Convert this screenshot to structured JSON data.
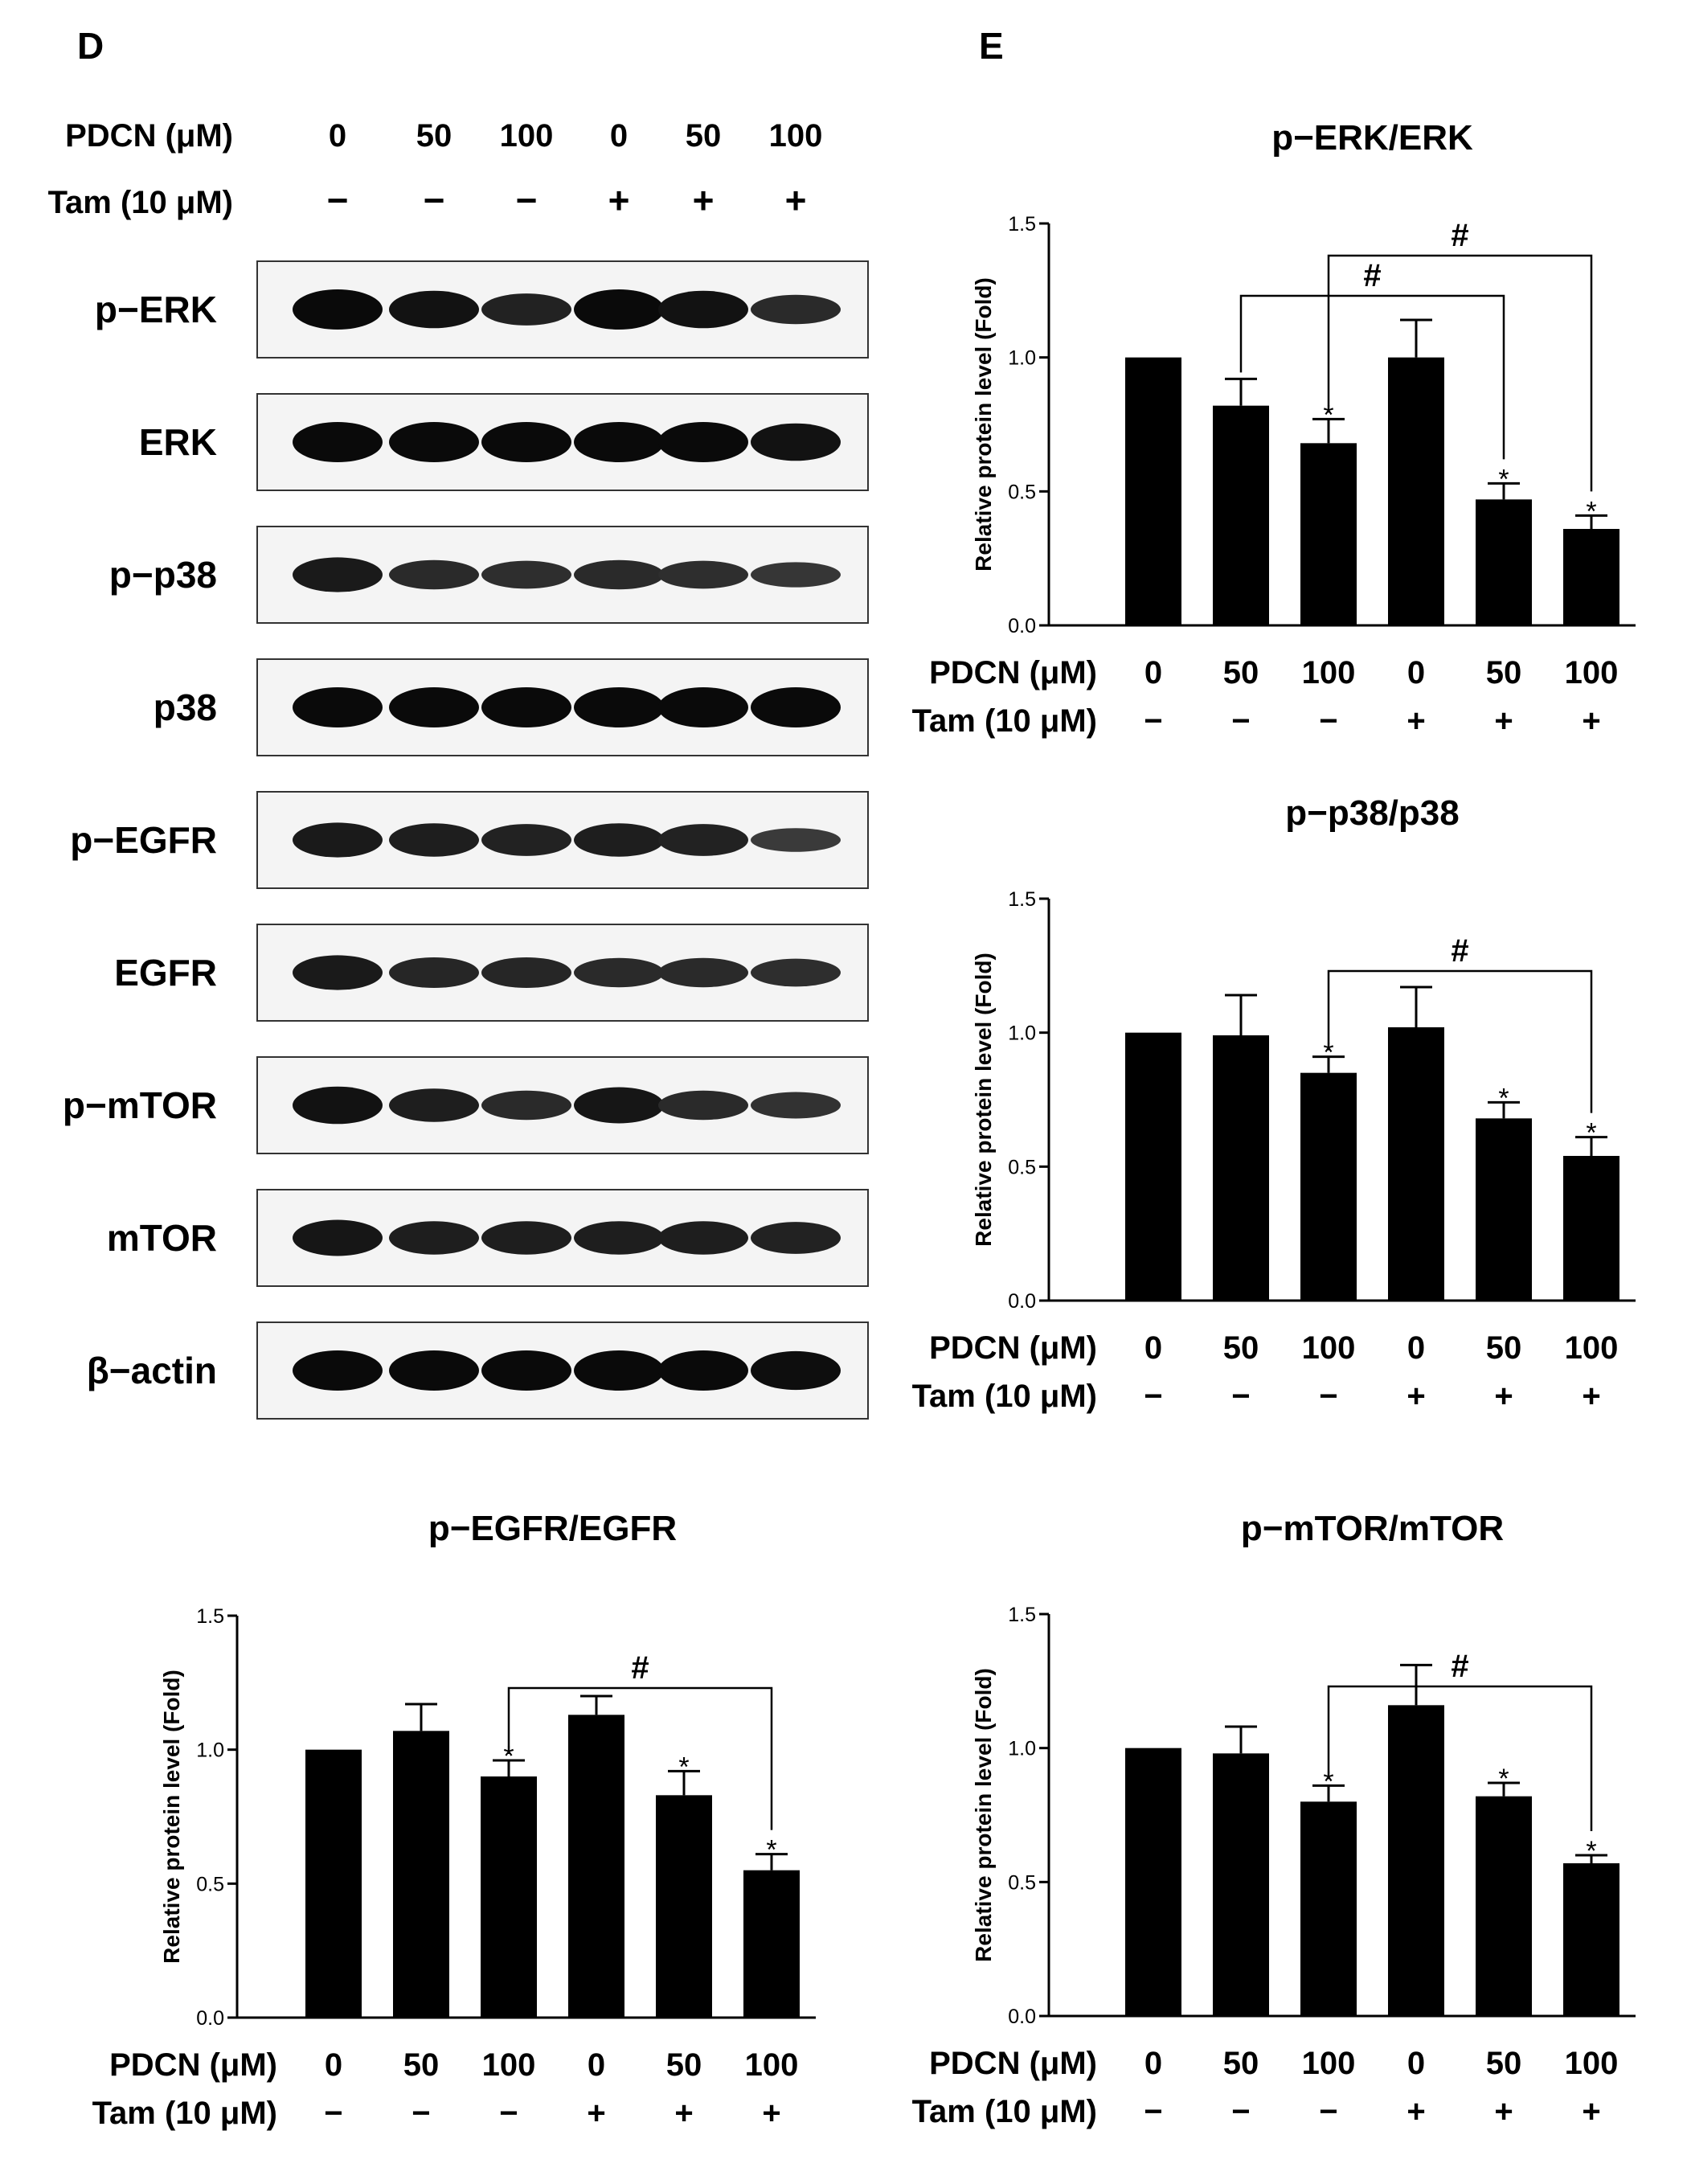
{
  "panel_letters": {
    "d": "D",
    "e": "E"
  },
  "treatment_labels": {
    "pdcn_label": "PDCN (μM)",
    "tam_label": "Tam (10 μM)",
    "pdcn_values": [
      "0",
      "50",
      "100",
      "0",
      "50",
      "100"
    ],
    "tam_values": [
      "−",
      "−",
      "−",
      "+",
      "+",
      "+"
    ]
  },
  "blot": {
    "rows": [
      {
        "label": "p−ERK",
        "intensities": [
          1.0,
          0.9,
          0.7,
          1.0,
          0.9,
          0.6
        ]
      },
      {
        "label": "ERK",
        "intensities": [
          1.0,
          1.0,
          1.0,
          1.0,
          1.0,
          0.9
        ]
      },
      {
        "label": "p−p38",
        "intensities": [
          0.8,
          0.6,
          0.55,
          0.6,
          0.55,
          0.45
        ]
      },
      {
        "label": "p38",
        "intensities": [
          1.0,
          1.0,
          1.0,
          1.0,
          1.0,
          1.0
        ]
      },
      {
        "label": "p−EGFR",
        "intensities": [
          0.8,
          0.75,
          0.7,
          0.75,
          0.7,
          0.4
        ]
      },
      {
        "label": "EGFR",
        "intensities": [
          0.8,
          0.65,
          0.65,
          0.6,
          0.6,
          0.55
        ]
      },
      {
        "label": "p−mTOR",
        "intensities": [
          0.9,
          0.75,
          0.6,
          0.85,
          0.6,
          0.5
        ]
      },
      {
        "label": "mTOR",
        "intensities": [
          0.85,
          0.75,
          0.75,
          0.75,
          0.75,
          0.7
        ]
      },
      {
        "label": "β−actin",
        "intensities": [
          1.0,
          1.0,
          1.0,
          1.0,
          1.0,
          0.95
        ]
      }
    ]
  },
  "chart_data": [
    {
      "type": "bar",
      "title": "p−ERK/ERK",
      "ylabel": "Relative protein level (Fold)",
      "ylim": [
        0,
        1.5
      ],
      "yticks": [
        "0.0",
        "0.5",
        "1.0",
        "1.5"
      ],
      "categories": [
        "0 / −",
        "50 / −",
        "100 / −",
        "0 / +",
        "50 / +",
        "100 / +"
      ],
      "values": [
        1.0,
        0.82,
        0.68,
        1.0,
        0.47,
        0.36
      ],
      "errors": [
        0.0,
        0.1,
        0.09,
        0.14,
        0.06,
        0.05
      ],
      "star_label": "*",
      "stars": [
        false,
        false,
        true,
        false,
        true,
        true
      ],
      "hash_label": "#",
      "brackets": [
        [
          1,
          4
        ],
        [
          2,
          5
        ]
      ]
    },
    {
      "type": "bar",
      "title": "p−p38/p38",
      "ylabel": "Relative protein level (Fold)",
      "ylim": [
        0,
        1.5
      ],
      "yticks": [
        "0.0",
        "0.5",
        "1.0",
        "1.5"
      ],
      "categories": [
        "0 / −",
        "50 / −",
        "100 / −",
        "0 / +",
        "50 / +",
        "100 / +"
      ],
      "values": [
        1.0,
        0.99,
        0.85,
        1.02,
        0.68,
        0.54
      ],
      "errors": [
        0.0,
        0.15,
        0.06,
        0.15,
        0.06,
        0.07
      ],
      "star_label": "*",
      "stars": [
        false,
        false,
        true,
        false,
        true,
        true
      ],
      "hash_label": "#",
      "brackets": [
        [
          2,
          5
        ]
      ]
    },
    {
      "type": "bar",
      "title": "p−EGFR/EGFR",
      "ylabel": "Relative protein level (Fold)",
      "ylim": [
        0,
        1.5
      ],
      "yticks": [
        "0.0",
        "0.5",
        "1.0",
        "1.5"
      ],
      "categories": [
        "0 / −",
        "50 / −",
        "100 / −",
        "0 / +",
        "50 / +",
        "100 / +"
      ],
      "values": [
        1.0,
        1.07,
        0.9,
        1.13,
        0.83,
        0.55
      ],
      "errors": [
        0.0,
        0.1,
        0.06,
        0.07,
        0.09,
        0.06
      ],
      "star_label": "*",
      "stars": [
        false,
        false,
        true,
        false,
        true,
        true
      ],
      "hash_label": "#",
      "brackets": [
        [
          2,
          5
        ]
      ]
    },
    {
      "type": "bar",
      "title": "p−mTOR/mTOR",
      "ylabel": "Relative protein level (Fold)",
      "ylim": [
        0,
        1.5
      ],
      "yticks": [
        "0.0",
        "0.5",
        "1.0",
        "1.5"
      ],
      "categories": [
        "0 / −",
        "50 / −",
        "100 / −",
        "0 / +",
        "50 / +",
        "100 / +"
      ],
      "values": [
        1.0,
        0.98,
        0.8,
        1.16,
        0.82,
        0.57
      ],
      "errors": [
        0.0,
        0.1,
        0.06,
        0.15,
        0.05,
        0.03
      ],
      "star_label": "*",
      "stars": [
        false,
        false,
        true,
        false,
        true,
        true
      ],
      "hash_label": "#",
      "brackets": [
        [
          2,
          5
        ]
      ]
    }
  ]
}
